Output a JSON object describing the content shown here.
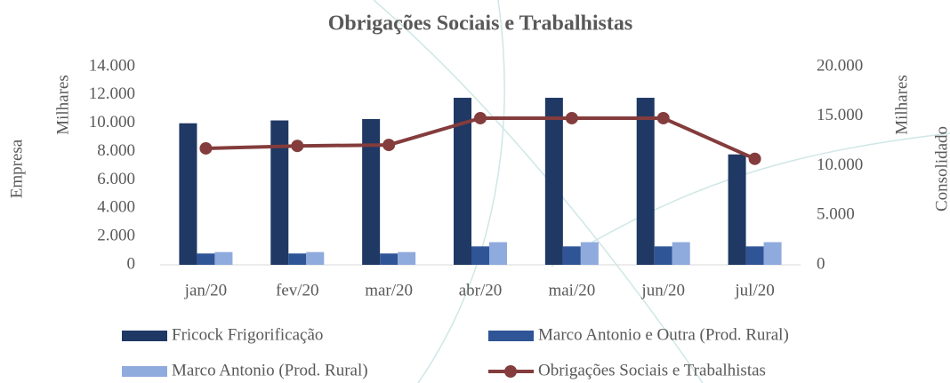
{
  "chart_data": {
    "type": "bar",
    "title": "Obrigações Sociais e Trabalhistas",
    "y_label": "Empresa",
    "y_unit_label": "Milhares",
    "y2_label": "Consolidado",
    "y2_unit_label": "Milhares",
    "categories": [
      "jan/20",
      "fev/20",
      "mar/20",
      "abr/20",
      "mai/20",
      "jun/20",
      "jul/20"
    ],
    "series": [
      {
        "name": "Fricock Frigorificação",
        "color": "#1f3864",
        "values": [
          10000,
          10200,
          10300,
          11800,
          11800,
          11800,
          7800
        ]
      },
      {
        "name": "Marco Antonio e Outra (Prod. Rural)",
        "color": "#2f5597",
        "values": [
          800,
          800,
          800,
          1300,
          1300,
          1300,
          1300
        ]
      },
      {
        "name": "Marco Antonio (Prod. Rural)",
        "color": "#8faadc",
        "values": [
          900,
          900,
          900,
          1600,
          1600,
          1600,
          1600
        ]
      },
      {
        "name": "Obrigações Sociais e Trabalhistas",
        "color": "#843c3c",
        "type": "line",
        "axis": "y2",
        "values": [
          11750,
          12000,
          12100,
          14800,
          14800,
          14800,
          10700
        ]
      }
    ],
    "ylim": [
      0,
      14000
    ],
    "yticks": [
      0,
      {
        "value": 2000,
        "label": "2.000"
      },
      {
        "value": 4000,
        "label": "4.000"
      },
      {
        "value": 6000,
        "label": "6.000"
      },
      {
        "value": 8000,
        "label": "8.000"
      },
      {
        "value": 10000,
        "label": "10.000"
      },
      {
        "value": 12000,
        "label": "12.000"
      },
      {
        "value": 14000,
        "label": "14.000"
      }
    ],
    "y2lim": [
      0,
      20000
    ],
    "y2ticks": [
      0,
      {
        "value": 5000,
        "label": "5.000"
      },
      {
        "value": 10000,
        "label": "10.000"
      },
      {
        "value": 15000,
        "label": "15.000"
      },
      {
        "value": 20000,
        "label": "20.000"
      }
    ],
    "grid": false,
    "legend": "bottom"
  }
}
